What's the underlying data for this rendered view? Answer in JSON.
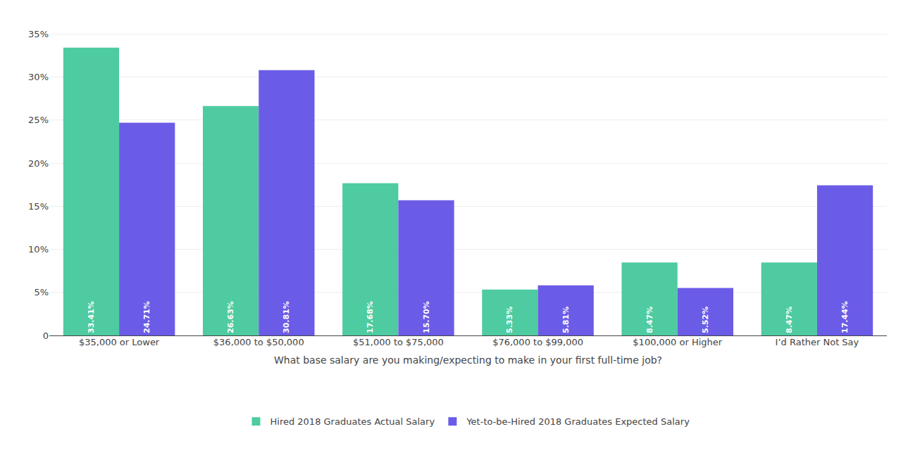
{
  "chart_data": {
    "type": "bar",
    "categories": [
      "$35,000 or Lower",
      "$36,000 to $50,000",
      "$51,000 to $75,000",
      "$76,000 to $99,000",
      "$100,000 or Higher",
      "I’d Rather Not Say"
    ],
    "series": [
      {
        "name": "Hired 2018 Graduates Actual Salary",
        "color": "#4ECBA0",
        "values": [
          33.41,
          26.63,
          17.68,
          5.33,
          8.47,
          8.47
        ],
        "value_labels": [
          "33.41%",
          "26.63%",
          "17.68%",
          "5.33%",
          "8.47%",
          "8.47%"
        ]
      },
      {
        "name": "Yet-to-be-Hired 2018 Graduates Expected Salary",
        "color": "#6B5CE7",
        "values": [
          24.71,
          30.81,
          15.7,
          5.81,
          5.52,
          17.44
        ],
        "value_labels": [
          "24.71%",
          "30.81%",
          "15.70%",
          "5.81%",
          "5.52%",
          "17.44%"
        ]
      }
    ],
    "xlabel": "What base salary are you making/expecting to make in your first full-time job?",
    "ylim": [
      0,
      36.5
    ],
    "yticks": [
      0,
      {
        "value": 5,
        "label": "5%"
      },
      {
        "value": 10,
        "label": "10%"
      },
      {
        "value": 15,
        "label": "15%"
      },
      {
        "value": 20,
        "label": "20%"
      },
      {
        "value": 25,
        "label": "25%"
      },
      {
        "value": 30,
        "label": "30%"
      },
      {
        "value": 35,
        "label": "35%"
      }
    ],
    "grid": true,
    "legend": "bottom",
    "data_labels": true
  }
}
